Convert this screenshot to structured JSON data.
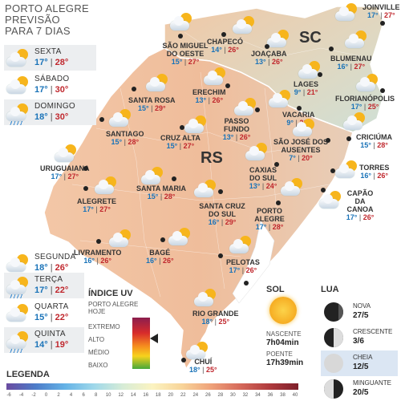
{
  "title": [
    "PORTO ALEGRE",
    "PREVISÃO",
    "PARA 7 DIAS"
  ],
  "forecast_days": [
    {
      "day": "SEXTA",
      "min": "17°",
      "max": "28°",
      "icon": "sun-cloud-icon"
    },
    {
      "day": "SÁBADO",
      "min": "17°",
      "max": "30°",
      "icon": "sun-cloud-icon"
    },
    {
      "day": "DOMINGO",
      "min": "18°",
      "max": "30°",
      "icon": "sun-cloud-rain-icon"
    },
    {
      "day": "SEGUNDA",
      "min": "18°",
      "max": "26°",
      "icon": "sun-cloud-icon"
    },
    {
      "day": "TERÇA",
      "min": "17°",
      "max": "22°",
      "icon": "sun-cloud-rain-icon"
    },
    {
      "day": "QUARTA",
      "min": "15°",
      "max": "22°",
      "icon": "sun-cloud-icon"
    },
    {
      "day": "QUINTA",
      "min": "14°",
      "max": "19°",
      "icon": "sun-cloud-rain-icon"
    }
  ],
  "states": {
    "rs": "RS",
    "sc": "SC"
  },
  "cities": [
    {
      "name": "JOINVILLE",
      "min": "17°",
      "max": "27°"
    },
    {
      "name": "CHAPECÓ",
      "min": "14°",
      "max": "26°"
    },
    {
      "name": "SÃO MIGUEL DO OESTE",
      "min": "15°",
      "max": "27°"
    },
    {
      "name": "JOAÇABA",
      "min": "13°",
      "max": "26°"
    },
    {
      "name": "BLUMENAU",
      "min": "16°",
      "max": "27°"
    },
    {
      "name": "LAGES",
      "min": "9°",
      "max": "21°"
    },
    {
      "name": "FLORIANÓPOLIS",
      "min": "17°",
      "max": "25°"
    },
    {
      "name": "ERECHIM",
      "min": "13°",
      "max": "26°"
    },
    {
      "name": "SANTA ROSA",
      "min": "15°",
      "max": "29°"
    },
    {
      "name": "PASSO FUNDO",
      "min": "13°",
      "max": "26°"
    },
    {
      "name": "VACARIA",
      "min": "9°",
      "max": "21°"
    },
    {
      "name": "SÃO JOSÉ DOS AUSENTES",
      "min": "7°",
      "max": "20°"
    },
    {
      "name": "CRICIÚMA",
      "min": "15°",
      "max": "28°"
    },
    {
      "name": "SANTIAGO",
      "min": "15°",
      "max": "28°"
    },
    {
      "name": "CRUZ ALTA",
      "min": "15°",
      "max": "27°"
    },
    {
      "name": "URUGUAIANA",
      "min": "17°",
      "max": "27°"
    },
    {
      "name": "CAXIAS DO SUL",
      "min": "13°",
      "max": "24°"
    },
    {
      "name": "TORRES",
      "min": "16°",
      "max": "26°"
    },
    {
      "name": "ALEGRETE",
      "min": "17°",
      "max": "27°"
    },
    {
      "name": "SANTA MARIA",
      "min": "15°",
      "max": "28°"
    },
    {
      "name": "SANTA CRUZ DO SUL",
      "min": "16°",
      "max": "29°"
    },
    {
      "name": "PORTO ALEGRE",
      "min": "17°",
      "max": "28°"
    },
    {
      "name": "CAPÃO DA CANOA",
      "min": "17°",
      "max": "26°"
    },
    {
      "name": "LIVRAMENTO",
      "min": "16°",
      "max": "26°"
    },
    {
      "name": "BAGÉ",
      "min": "16°",
      "max": "26°"
    },
    {
      "name": "PELOTAS",
      "min": "17°",
      "max": "26°"
    },
    {
      "name": "RIO GRANDE",
      "min": "18°",
      "max": "25°"
    },
    {
      "name": "CHUÍ",
      "min": "18°",
      "max": "25°"
    }
  ],
  "uv": {
    "title": "ÍNDICE UV",
    "subtitle": [
      "PORTO ALEGRE",
      "HOJE"
    ],
    "levels": [
      "EXTREMO",
      "ALTO",
      "MÉDIO",
      "BAIXO"
    ],
    "current_level": "ALTO"
  },
  "sol": {
    "title": "SOL",
    "sunrise_label": "NASCENTE",
    "sunrise": "7h04min",
    "sunset_label": "POENTE",
    "sunset": "17h39min"
  },
  "lua": {
    "title": "LUA",
    "phases": [
      {
        "name": "NOVA",
        "date": "27/5",
        "highlight": false
      },
      {
        "name": "CRESCENTE",
        "date": "3/6",
        "highlight": false
      },
      {
        "name": "CHEIA",
        "date": "12/5",
        "highlight": true
      },
      {
        "name": "MINGUANTE",
        "date": "20/5",
        "highlight": false
      }
    ]
  },
  "legend": {
    "title": "LEGENDA",
    "ticks": [
      "-6",
      "-4",
      "-2",
      "0",
      "2",
      "4",
      "6",
      "8",
      "10",
      "12",
      "14",
      "16",
      "18",
      "20",
      "22",
      "24",
      "26",
      "28",
      "30",
      "32",
      "34",
      "36",
      "38",
      "40"
    ]
  }
}
